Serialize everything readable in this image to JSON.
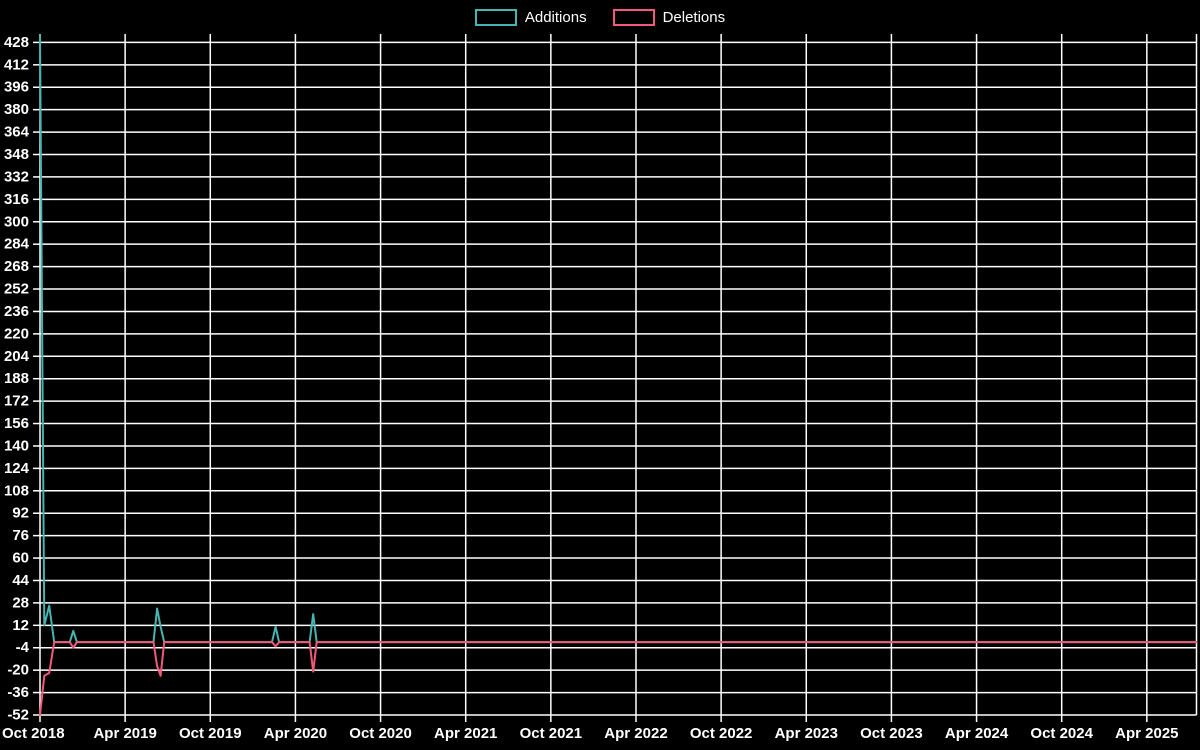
{
  "legend": {
    "additions_label": "Additions",
    "deletions_label": "Deletions"
  },
  "colors": {
    "additions": "#45B5B2",
    "deletions": "#F4587A",
    "background": "#000000",
    "grid": "#FFFFFF",
    "text": "#FFFFFF"
  },
  "chart_data": {
    "type": "line",
    "title": "",
    "legend_position": "top-center",
    "grid": true,
    "background": "#000000",
    "x_axis": {
      "tick_labels": [
        "Oct 2018",
        "Apr 2019",
        "Oct 2019",
        "Apr 2020",
        "Oct 2020",
        "Apr 2021",
        "Oct 2021",
        "Apr 2022",
        "Oct 2022",
        "Apr 2023",
        "Oct 2023",
        "Apr 2024",
        "Oct 2024",
        "Apr 2025"
      ],
      "tick_interval_months": 6,
      "range_months": [
        0,
        81.5
      ],
      "start_month_label": "Oct 2018"
    },
    "y_axis": {
      "range": [
        -52,
        434
      ],
      "tick_step": 16,
      "tick_values": [
        428,
        412,
        396,
        380,
        364,
        348,
        332,
        316,
        300,
        284,
        268,
        252,
        236,
        220,
        204,
        188,
        172,
        156,
        140,
        124,
        108,
        92,
        76,
        60,
        44,
        28,
        12,
        -4,
        -20,
        -36,
        -52
      ]
    },
    "x_months": [
      0,
      0.3,
      0.65,
      1,
      2.1,
      2.35,
      2.6,
      8,
      8.25,
      8.5,
      8.75,
      16.35,
      16.6,
      16.85,
      19,
      19.25,
      19.5,
      81.5
    ],
    "series": [
      {
        "name": "Additions",
        "color": "#45B5B2",
        "values": [
          433,
          12,
          26,
          0,
          0,
          8,
          0,
          0,
          24,
          11,
          0,
          0,
          11,
          0,
          0,
          20,
          0,
          0
        ]
      },
      {
        "name": "Deletions",
        "color": "#F4587A",
        "values": [
          -52,
          -24,
          -22,
          0,
          0,
          -4,
          0,
          0,
          -17,
          -24,
          0,
          0,
          -3,
          0,
          0,
          -21,
          0,
          0
        ]
      }
    ]
  }
}
